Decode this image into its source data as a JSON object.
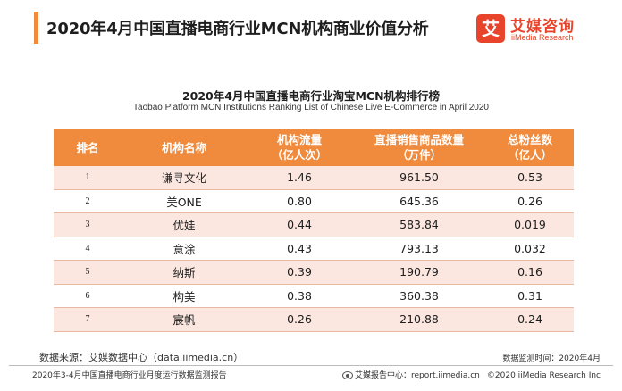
{
  "header": {
    "title": "2020年4月中国直播电商行业MCN机构商业价值分析",
    "logo_mark": "艾",
    "logo_cn": "艾媒咨询",
    "logo_en": "iiMedia Research"
  },
  "table": {
    "title": "2020年4月中国直播电商行业淘宝MCN机构排行榜",
    "subtitle": "Taobao Platform MCN Institutions Ranking List of Chinese Live E-Commerce in April 2020",
    "headers": [
      {
        "line1": "排名",
        "line2": ""
      },
      {
        "line1": "机构名称",
        "line2": ""
      },
      {
        "line1": "机构流量",
        "line2": "（亿人次）"
      },
      {
        "line1": "直播销售商品数量",
        "line2": "（万件）"
      },
      {
        "line1": "总粉丝数",
        "line2": "（亿人）"
      }
    ],
    "rows": [
      {
        "rank": "1",
        "name": "谦寻文化",
        "traffic": "1.46",
        "sales": "961.50",
        "fans": "0.53"
      },
      {
        "rank": "2",
        "name": "美ONE",
        "traffic": "0.80",
        "sales": "645.36",
        "fans": "0.26"
      },
      {
        "rank": "3",
        "name": "优娃",
        "traffic": "0.44",
        "sales": "583.84",
        "fans": "0.019"
      },
      {
        "rank": "4",
        "name": "意涂",
        "traffic": "0.43",
        "sales": "793.13",
        "fans": "0.032"
      },
      {
        "rank": "5",
        "name": "纳斯",
        "traffic": "0.39",
        "sales": "190.79",
        "fans": "0.16"
      },
      {
        "rank": "6",
        "name": "构美",
        "traffic": "0.38",
        "sales": "360.38",
        "fans": "0.31"
      },
      {
        "rank": "7",
        "name": "宸帆",
        "traffic": "0.26",
        "sales": "210.88",
        "fans": "0.24"
      }
    ]
  },
  "footer": {
    "source": "数据来源：艾媒数据中心（data.iimedia.cn）",
    "monitor_time": "数据监测时间：2020年4月",
    "report_name": "2020年3-4月中国直播电商行业月度运行数据监测报告",
    "report_center": "艾媒报告中心：report.iimedia.cn",
    "copyright": "©2020  iiMedia Research  Inc"
  },
  "colors": {
    "accent": "#f08a3c",
    "brand_red": "#e8442b",
    "row_tint": "#fbe7e0"
  }
}
